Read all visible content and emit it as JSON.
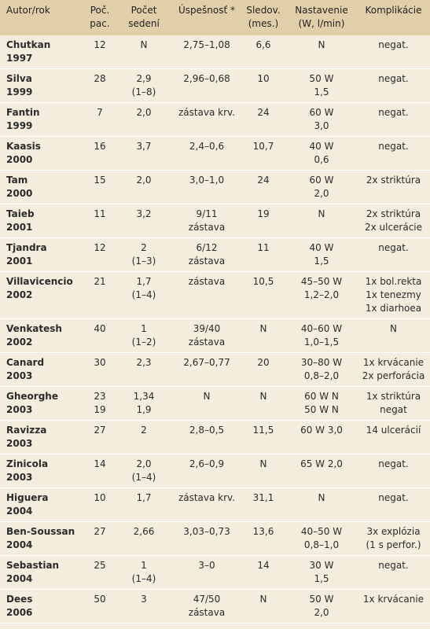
{
  "table": {
    "header": [
      [
        "Autor/rok"
      ],
      [
        "Poč.",
        "pac."
      ],
      [
        "Počet",
        "sedení"
      ],
      [
        "Úspešnosť *"
      ],
      [
        "Sledov.",
        "(mes.)"
      ],
      [
        "Nastavenie",
        "(W, l/min)"
      ],
      [
        "Komplikácie"
      ]
    ],
    "rows": [
      {
        "author": "Chutkan",
        "year": "1997",
        "cells": [
          [
            "12"
          ],
          [
            "N"
          ],
          [
            "2,75–1,08"
          ],
          [
            "6,6"
          ],
          [
            "N"
          ],
          [
            "negat."
          ]
        ]
      },
      {
        "author": "Silva",
        "year": "1999",
        "cells": [
          [
            "28"
          ],
          [
            "2,9",
            "(1–8)"
          ],
          [
            "2,96–0,68"
          ],
          [
            "10"
          ],
          [
            "50 W",
            "1,5"
          ],
          [
            "negat."
          ]
        ]
      },
      {
        "author": "Fantin",
        "year": "1999",
        "cells": [
          [
            "7"
          ],
          [
            "2,0"
          ],
          [
            "zástava krv."
          ],
          [
            "24"
          ],
          [
            "60 W",
            "3,0"
          ],
          [
            "negat."
          ]
        ]
      },
      {
        "author": "Kaasis",
        "year": "2000",
        "cells": [
          [
            "16"
          ],
          [
            "3,7"
          ],
          [
            "2,4–0,6"
          ],
          [
            "10,7"
          ],
          [
            "40 W",
            "0,6"
          ],
          [
            "negat."
          ]
        ]
      },
      {
        "author": "Tam",
        "year": "2000",
        "cells": [
          [
            "15"
          ],
          [
            "2,0"
          ],
          [
            "3,0–1,0"
          ],
          [
            "24"
          ],
          [
            "60 W",
            "2,0"
          ],
          [
            "2x striktúra"
          ]
        ]
      },
      {
        "author": "Taieb",
        "year": "2001",
        "cells": [
          [
            "11"
          ],
          [
            "3,2"
          ],
          [
            "9/11",
            "zástava"
          ],
          [
            "19"
          ],
          [
            "N"
          ],
          [
            "2x striktúra",
            "2x ulcerácie"
          ]
        ]
      },
      {
        "author": "Tjandra",
        "year": "2001",
        "cells": [
          [
            "12"
          ],
          [
            "2",
            "(1–3)"
          ],
          [
            "6/12",
            "zástava"
          ],
          [
            "11"
          ],
          [
            "40 W",
            "1,5"
          ],
          [
            "negat."
          ]
        ]
      },
      {
        "author": "Villavicencio",
        "year": "2002",
        "cells": [
          [
            "21"
          ],
          [
            "1,7",
            "(1–4)"
          ],
          [
            "zástava"
          ],
          [
            "10,5"
          ],
          [
            "45–50 W",
            "1,2–2,0"
          ],
          [
            "1x bol.rekta",
            "1x tenezmy",
            "1x diarhoea"
          ]
        ]
      },
      {
        "author": "Venkatesh",
        "year": "2002",
        "cells": [
          [
            "40"
          ],
          [
            "1",
            "(1–2)"
          ],
          [
            "39/40",
            "zástava"
          ],
          [
            "N"
          ],
          [
            "40–60 W",
            "1,0–1,5"
          ],
          [
            "N"
          ]
        ]
      },
      {
        "author": "Canard",
        "year": "2003",
        "cells": [
          [
            "30"
          ],
          [
            "2,3"
          ],
          [
            "2,67–0,77"
          ],
          [
            "20"
          ],
          [
            "30–80 W",
            "0,8–2,0"
          ],
          [
            "1x krvácanie",
            "2x perforácia"
          ]
        ]
      },
      {
        "author": "Gheorghe",
        "year": "2003",
        "cells": [
          [
            "23",
            "19"
          ],
          [
            "1,34",
            "1,9"
          ],
          [
            "N"
          ],
          [
            "N"
          ],
          [
            "60 W N",
            "50 W N"
          ],
          [
            "1x striktúra",
            "negat"
          ]
        ]
      },
      {
        "author": "Ravizza",
        "year": "2003",
        "cells": [
          [
            "27"
          ],
          [
            "2"
          ],
          [
            "2,8–0,5"
          ],
          [
            "11,5"
          ],
          [
            "60 W 3,0"
          ],
          [
            "14 ulcerácií"
          ]
        ]
      },
      {
        "author": "Zinicola",
        "year": "2003",
        "cells": [
          [
            "14"
          ],
          [
            "2,0",
            "(1–4)"
          ],
          [
            "2,6–0,9"
          ],
          [
            "N"
          ],
          [
            "65 W 2,0"
          ],
          [
            "negat."
          ]
        ]
      },
      {
        "author": "Higuera",
        "year": "2004",
        "cells": [
          [
            "10"
          ],
          [
            "1,7"
          ],
          [
            "zástava krv."
          ],
          [
            "31,1"
          ],
          [
            "N"
          ],
          [
            "negat."
          ]
        ]
      },
      {
        "author": "Ben-Soussan",
        "year": "2004",
        "cells": [
          [
            "27"
          ],
          [
            "2,66"
          ],
          [
            "3,03–0,73"
          ],
          [
            "13,6"
          ],
          [
            "40–50 W",
            "0,8–1,0"
          ],
          [
            "3x explózia",
            "(1 s perfor.)"
          ]
        ]
      },
      {
        "author": "Sebastian",
        "year": "2004",
        "cells": [
          [
            "25"
          ],
          [
            "1",
            "(1–4)"
          ],
          [
            "3–0"
          ],
          [
            "14"
          ],
          [
            "30 W",
            "1,5"
          ],
          [
            "negat."
          ]
        ]
      },
      {
        "author": "Dees",
        "year": "2006",
        "cells": [
          [
            "50"
          ],
          [
            "3"
          ],
          [
            "47/50",
            "zástava"
          ],
          [
            "N"
          ],
          [
            "50 W",
            "2,0"
          ],
          [
            "1x krvácanie"
          ]
        ]
      }
    ]
  }
}
